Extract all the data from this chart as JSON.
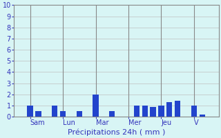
{
  "title": "",
  "xlabel": "Précipitations 24h ( mm )",
  "ylim": [
    0,
    10
  ],
  "yticks": [
    0,
    1,
    2,
    3,
    4,
    5,
    6,
    7,
    8,
    9,
    10
  ],
  "background_color": "#d8f5f5",
  "bar_color": "#2244cc",
  "grid_color": "#c0c0c0",
  "bar_positions": [
    3,
    4,
    6,
    7,
    9,
    11,
    13,
    16,
    17,
    18,
    19,
    20,
    21,
    23,
    24
  ],
  "bar_heights": [
    1.0,
    0.5,
    1.0,
    0.5,
    0.5,
    2.0,
    0.5,
    1.0,
    1.0,
    0.9,
    1.0,
    1.3,
    1.4,
    1.0,
    0.2
  ],
  "day_labels": [
    "Sam",
    "Lun",
    "Mar",
    "Mer",
    "Jeu",
    "V"
  ],
  "day_tick_positions": [
    3,
    7,
    11,
    15,
    19,
    23
  ],
  "xlim": [
    1,
    26
  ],
  "xlabel_color": "#3333bb",
  "tick_color": "#3333bb",
  "label_fontsize": 7,
  "tick_fontsize": 7,
  "bar_width": 0.7
}
